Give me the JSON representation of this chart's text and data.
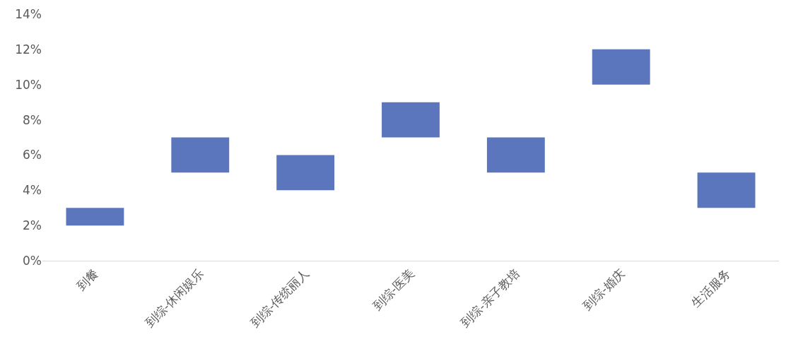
{
  "chart_data": {
    "type": "bar",
    "categories": [
      "到餐",
      "到综-休闲娱乐",
      "到综-传统丽人",
      "到综-医美",
      "到综-亲子教培",
      "到综-婚庆",
      "生活服务"
    ],
    "base": [
      2,
      5,
      4,
      7,
      5,
      10,
      3
    ],
    "values": [
      1,
      2,
      2,
      2,
      2,
      2,
      2
    ],
    "color": "#5b76bd",
    "ylim": [
      0,
      14
    ],
    "yticks": [
      {
        "value": 0,
        "label": "0%"
      },
      {
        "value": 2,
        "label": "2%"
      },
      {
        "value": 4,
        "label": "4%"
      },
      {
        "value": 6,
        "label": "6%"
      },
      {
        "value": 8,
        "label": "8%"
      },
      {
        "value": 10,
        "label": "10%"
      },
      {
        "value": 12,
        "label": "12%"
      },
      {
        "value": 14,
        "label": "14%"
      }
    ],
    "grid": false
  }
}
